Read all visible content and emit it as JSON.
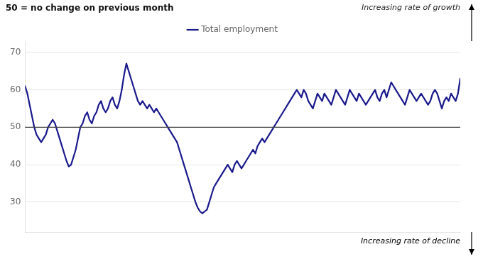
{
  "chart_data": {
    "type": "line",
    "subtitle": "50 = no change on previous month",
    "annotations": [
      "Increasing rate of growth",
      "Increasing rate of decline"
    ],
    "series": [
      {
        "name": "Total employment",
        "color": "#1a1a8c",
        "values": [
          61,
          59,
          56,
          53,
          50,
          48,
          47,
          46,
          47,
          48,
          50,
          51,
          52,
          51,
          49,
          47,
          45,
          43,
          41,
          39.5,
          40,
          42,
          44,
          47,
          50,
          51,
          53,
          54,
          52,
          51,
          53,
          54,
          56,
          57,
          55,
          54,
          55,
          57,
          58,
          56,
          55,
          57,
          60,
          64,
          67,
          65,
          63,
          61,
          59,
          57,
          56,
          57,
          56,
          55,
          56,
          55,
          54,
          55,
          54,
          53,
          52,
          51,
          50,
          49,
          48,
          47,
          46,
          44,
          42,
          40,
          38,
          36,
          34,
          32,
          30,
          28.5,
          27.5,
          27,
          27.5,
          28,
          30,
          32,
          34,
          35,
          36,
          37,
          38,
          39,
          40,
          39,
          38,
          40,
          41,
          40,
          39,
          40,
          41,
          42,
          43,
          44,
          43,
          45,
          46,
          47,
          46,
          47,
          48,
          49,
          50,
          51,
          52,
          53,
          54,
          55,
          56,
          57,
          58,
          59,
          60,
          59,
          58,
          60,
          59,
          57,
          56,
          55,
          57,
          59,
          58,
          57,
          59,
          58,
          57,
          56,
          58,
          60,
          59,
          58,
          57,
          56,
          58,
          60,
          59,
          58,
          57,
          59,
          58,
          57,
          56,
          57,
          58,
          59,
          60,
          58,
          57,
          59,
          60,
          58,
          60,
          62,
          61,
          60,
          59,
          58,
          57,
          56,
          58,
          60,
          59,
          58,
          57,
          58,
          59,
          58,
          57,
          56,
          57,
          59,
          60,
          59,
          57,
          55,
          57,
          58,
          57,
          59,
          58,
          57,
          59,
          63
        ]
      }
    ],
    "reference_line": 50,
    "ylim": [
      22,
      73
    ],
    "yticks": [
      30,
      40,
      50,
      60,
      70
    ],
    "grid": true,
    "tick_labels": "y",
    "legend": "top"
  }
}
